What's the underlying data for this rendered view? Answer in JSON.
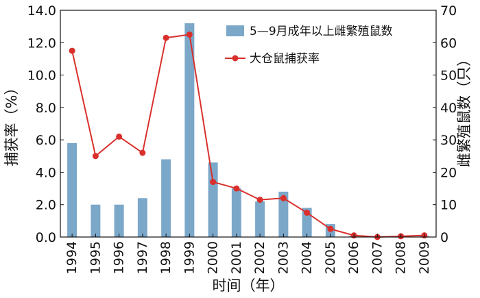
{
  "chart_data": {
    "type": "bar+line",
    "categories": [
      "1994",
      "1995",
      "1996",
      "1997",
      "1998",
      "1999",
      "2000",
      "2001",
      "2002",
      "2003",
      "2004",
      "2005",
      "2006",
      "2007",
      "2008",
      "2009"
    ],
    "series": [
      {
        "name": "5—9月成年以上雌繁殖鼠数",
        "type": "bar",
        "axis": "right",
        "color": "#7ba7c9",
        "values": [
          29,
          10,
          10,
          12,
          24,
          66,
          23,
          15,
          11,
          14,
          9,
          4,
          0.3,
          0.2,
          0.3,
          0.3
        ]
      },
      {
        "name": "大仓鼠捕获率",
        "type": "line",
        "axis": "left",
        "color": "#d9302c",
        "values": [
          11.5,
          5.0,
          6.2,
          5.2,
          12.3,
          12.5,
          3.4,
          3.0,
          2.3,
          2.4,
          1.5,
          0.5,
          0.1,
          0.0,
          0.05,
          0.1
        ]
      }
    ],
    "xlabel": "时间（年）",
    "ylabel_left": "捕获率（%）",
    "ylabel_right": "雌繁殖鼠数（只）",
    "ylim_left": [
      0,
      14
    ],
    "ylim_right": [
      0,
      70
    ],
    "yticks_left": [
      "0.0",
      "2.0",
      "4.0",
      "6.0",
      "8.0",
      "10.0",
      "12.0",
      "14.0"
    ],
    "yticks_right": [
      "0",
      "10",
      "20",
      "30",
      "40",
      "50",
      "60",
      "70"
    ],
    "legend_position": "top-right",
    "grid": false
  }
}
